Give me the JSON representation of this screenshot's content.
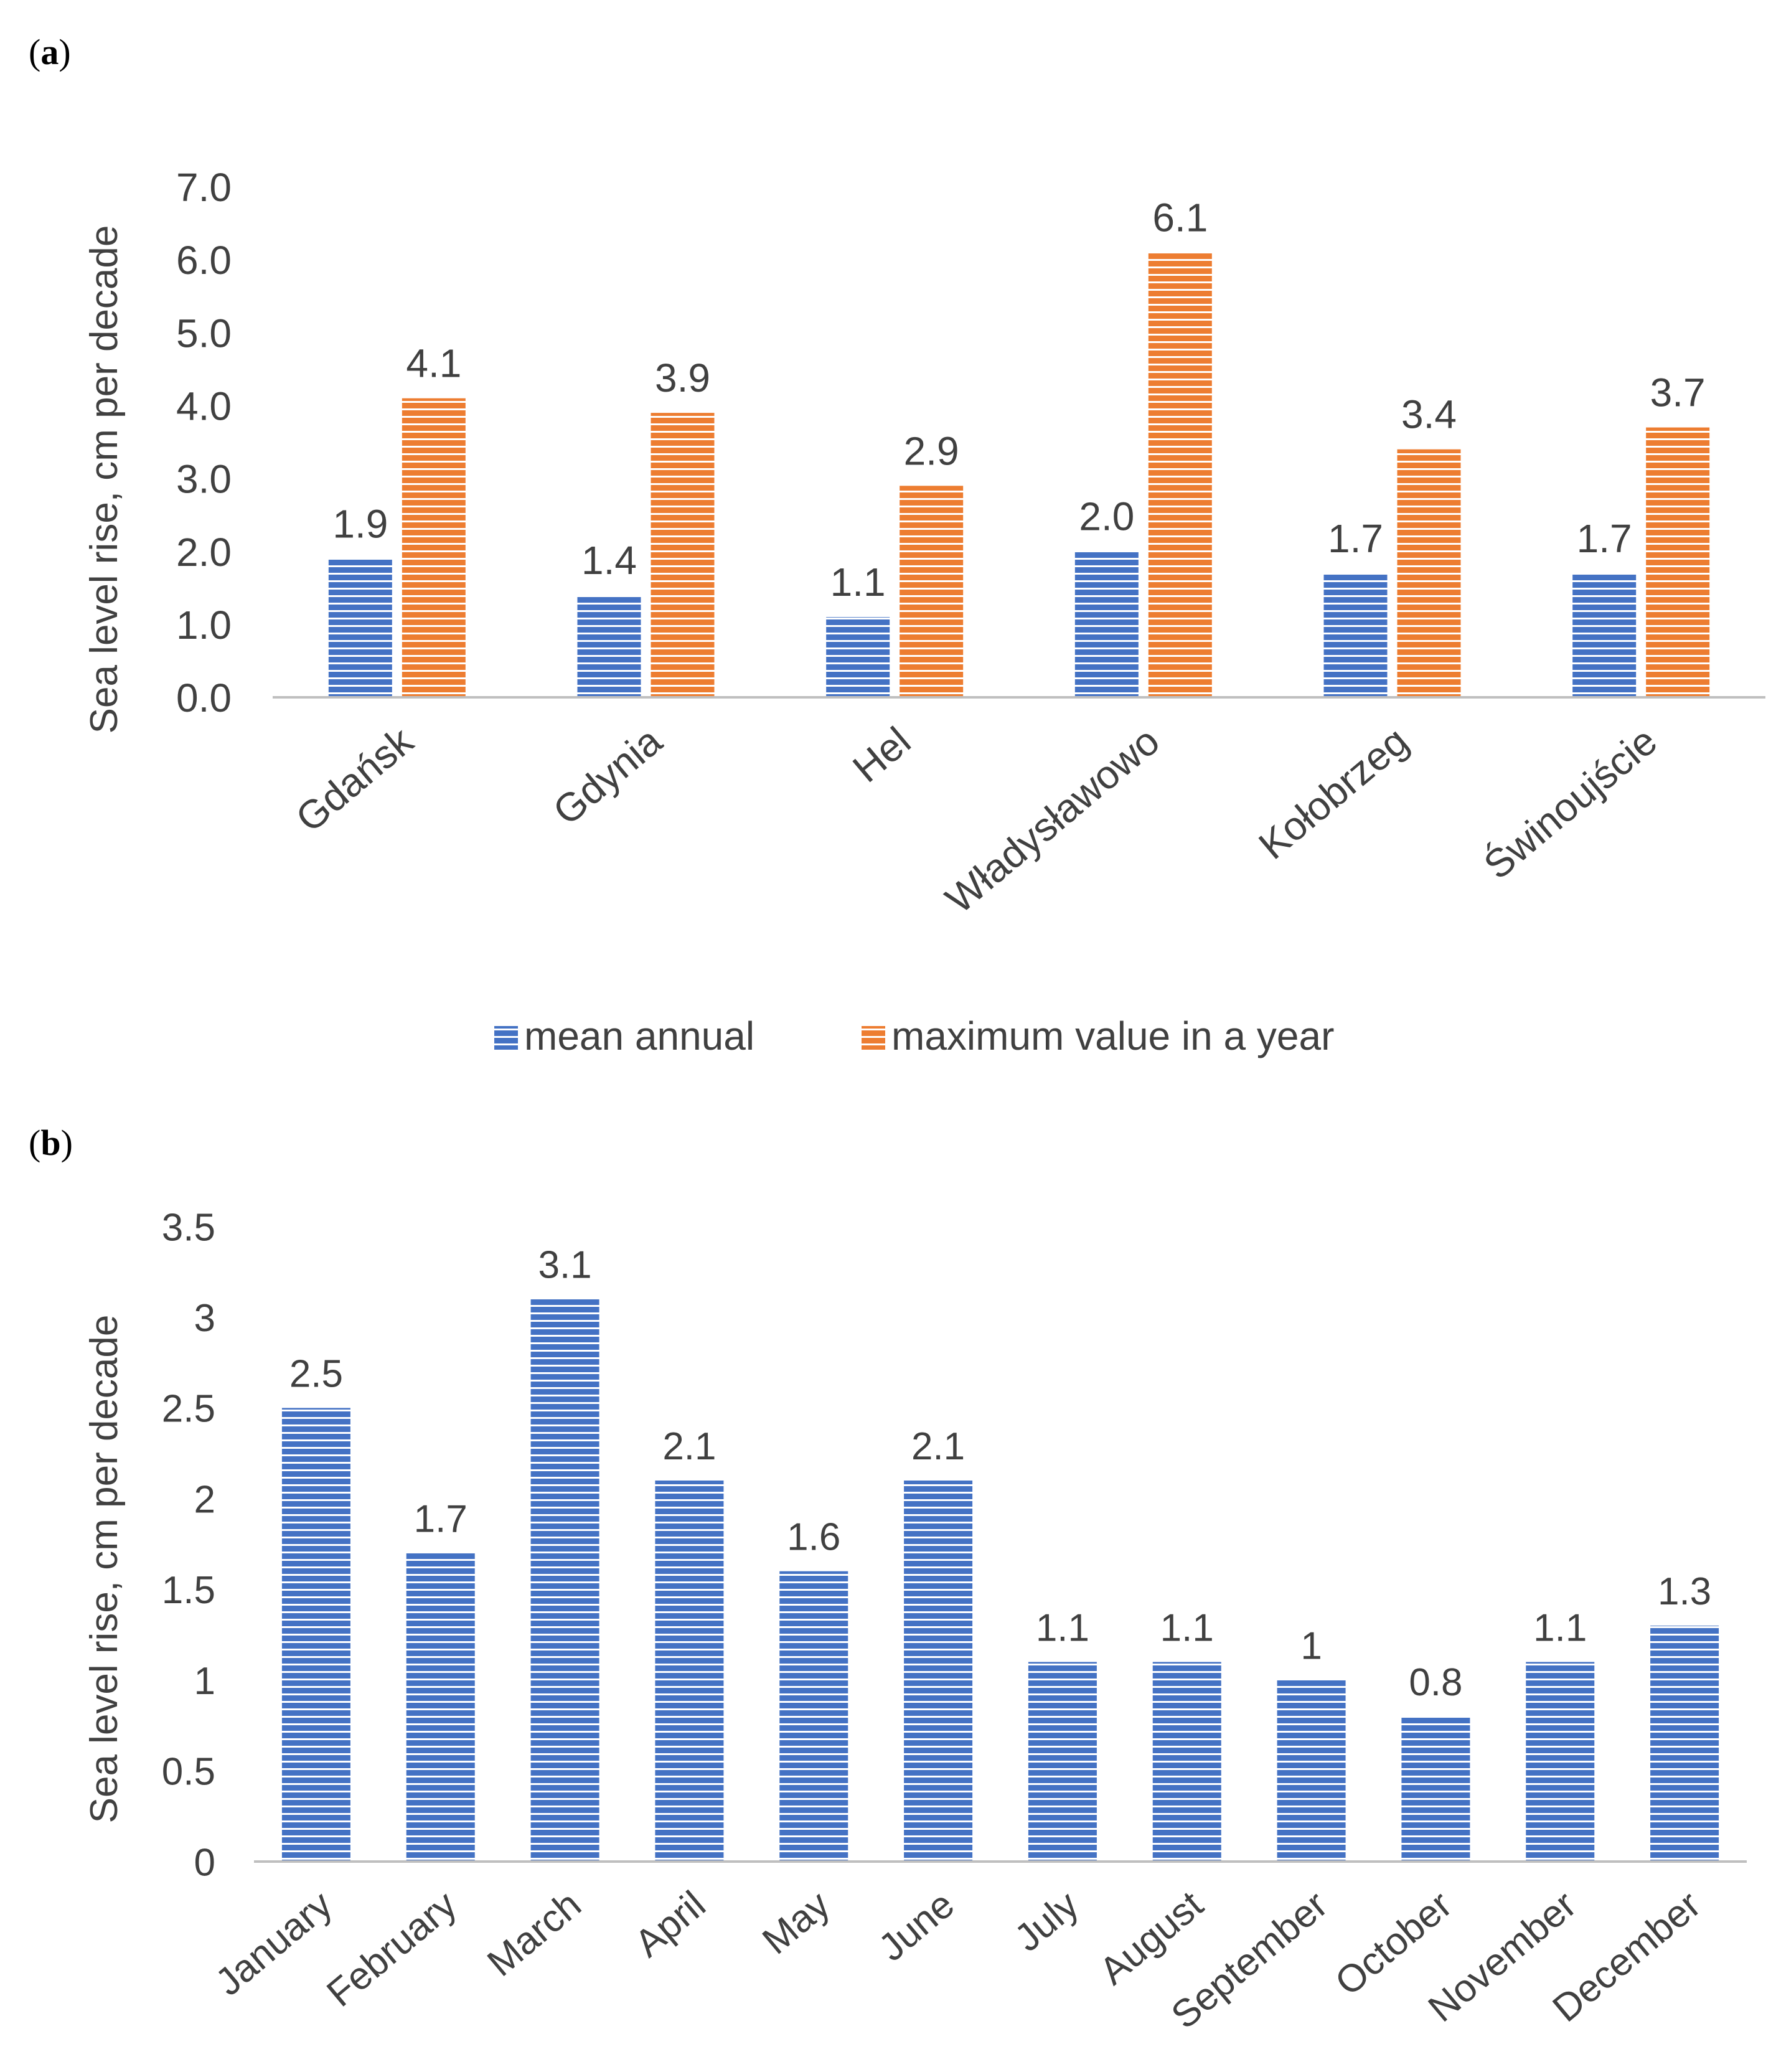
{
  "colors": {
    "blue": "#4472C4",
    "orange": "#ED7D31",
    "stripe": "#ffffff",
    "axis": "#BFBFBF",
    "text": "#404040"
  },
  "chart_data": [
    {
      "panel_label": "a",
      "type": "bar",
      "ylabel": "Sea level rise, cm per decade",
      "ylim": [
        0,
        7
      ],
      "yticks": [
        "0.0",
        "1.0",
        "2.0",
        "3.0",
        "4.0",
        "5.0",
        "6.0",
        "7.0"
      ],
      "categories": [
        "Gdańsk",
        "Gdynia",
        "Hel",
        "Władysławowo",
        "Kołobrzeg",
        "Świnoujście"
      ],
      "series": [
        {
          "name": "mean annual",
          "color": "#4472C4",
          "values": [
            1.9,
            1.4,
            1.1,
            2.0,
            1.7,
            1.7
          ],
          "labels": [
            "1.9",
            "1.4",
            "1.1",
            "2.0",
            "1.7",
            "1.7"
          ]
        },
        {
          "name": "maximum value in a year",
          "color": "#ED7D31",
          "values": [
            4.1,
            3.9,
            2.9,
            6.1,
            3.4,
            3.7
          ],
          "labels": [
            "4.1",
            "3.9",
            "2.9",
            "6.1",
            "3.4",
            "3.7"
          ]
        }
      ],
      "legend": "bottom",
      "grid": false
    },
    {
      "panel_label": "b",
      "type": "bar",
      "ylabel": "Sea level rise, cm per decade",
      "ylim": [
        0,
        3.5
      ],
      "yticks": [
        "0",
        "0.5",
        "1",
        "1.5",
        "2",
        "2.5",
        "3",
        "3.5"
      ],
      "categories": [
        "January",
        "February",
        "March",
        "April",
        "May",
        "June",
        "July",
        "August",
        "September",
        "October",
        "November",
        "December"
      ],
      "series": [
        {
          "color": "#4472C4",
          "values": [
            2.5,
            1.7,
            3.1,
            2.1,
            1.6,
            2.1,
            1.1,
            1.1,
            1.0,
            0.8,
            1.1,
            1.3
          ],
          "labels": [
            "2.5",
            "1.7",
            "3.1",
            "2.1",
            "1.6",
            "2.1",
            "1.1",
            "1.1",
            "1",
            "0.8",
            "1.1",
            "1.3"
          ]
        }
      ],
      "legend": "none",
      "grid": false
    }
  ]
}
